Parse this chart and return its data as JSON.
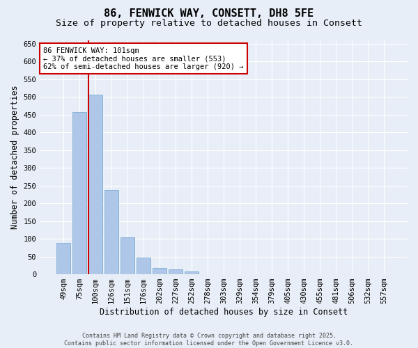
{
  "title1": "86, FENWICK WAY, CONSETT, DH8 5FE",
  "title2": "Size of property relative to detached houses in Consett",
  "xlabel": "Distribution of detached houses by size in Consett",
  "ylabel": "Number of detached properties",
  "categories": [
    "49sqm",
    "75sqm",
    "100sqm",
    "126sqm",
    "151sqm",
    "176sqm",
    "202sqm",
    "227sqm",
    "252sqm",
    "278sqm",
    "303sqm",
    "329sqm",
    "354sqm",
    "379sqm",
    "405sqm",
    "430sqm",
    "455sqm",
    "481sqm",
    "506sqm",
    "532sqm",
    "557sqm"
  ],
  "values": [
    88,
    457,
    507,
    238,
    104,
    47,
    18,
    13,
    8,
    1,
    0,
    0,
    0,
    0,
    1,
    0,
    0,
    1,
    0,
    0,
    1
  ],
  "bar_color": "#aec6e8",
  "bar_edge_color": "#7bafd4",
  "vline_color": "#cc0000",
  "annotation_text": "86 FENWICK WAY: 101sqm\n← 37% of detached houses are smaller (553)\n62% of semi-detached houses are larger (920) →",
  "annot_box_color": "#ffffff",
  "annot_box_edge": "#cc0000",
  "ylim": [
    0,
    660
  ],
  "yticks": [
    0,
    50,
    100,
    150,
    200,
    250,
    300,
    350,
    400,
    450,
    500,
    550,
    600,
    650
  ],
  "background_color": "#e8eef7",
  "footer_text": "Contains HM Land Registry data © Crown copyright and database right 2025.\nContains public sector information licensed under the Open Government Licence v3.0.",
  "title_fontsize": 11,
  "subtitle_fontsize": 9.5,
  "tick_fontsize": 7.5,
  "label_fontsize": 8.5,
  "annot_fontsize": 7.5
}
